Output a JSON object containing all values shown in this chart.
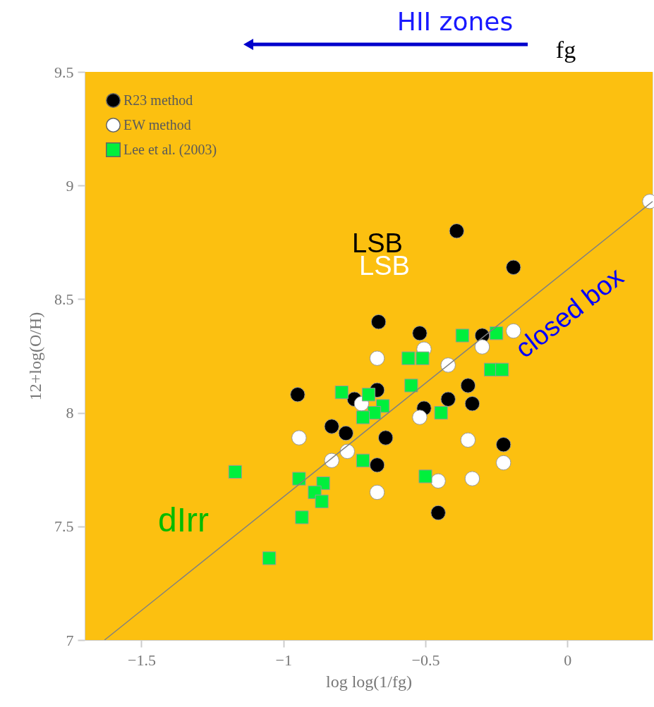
{
  "chart_data": {
    "type": "scatter",
    "xlabel": "log log(1/fg)",
    "ylabel": "12+log(O/H)",
    "xlim": [
      -1.7,
      0.3
    ],
    "ylim": [
      7,
      9.5
    ],
    "xticks": [
      -1.5,
      -1,
      -0.5,
      0
    ],
    "yticks": [
      7,
      7.5,
      8,
      8.5,
      9,
      9.5
    ],
    "grid": false,
    "legend": "top left",
    "annotations": [
      "HII zones",
      "fg",
      "LSB",
      "LSB",
      "dIrr",
      "closed box"
    ],
    "series": [
      {
        "type": "line",
        "color": "#808080",
        "x": [
          -1.63,
          0.3
        ],
        "values": [
          7.0,
          8.93
        ]
      },
      {
        "name": "R23 method",
        "color": "#000000",
        "marker": "circle",
        "x": [
          -0.95,
          -0.39,
          -0.19,
          -0.665,
          -0.52,
          -0.3,
          -0.83,
          -0.78,
          -0.75,
          -0.67,
          -0.35,
          -0.42,
          -0.335,
          -0.505,
          -0.64,
          -0.67,
          -0.225,
          -0.455
        ],
        "values": [
          8.08,
          8.8,
          8.64,
          8.4,
          8.35,
          8.34,
          7.94,
          7.91,
          8.06,
          8.1,
          8.12,
          8.06,
          8.04,
          8.02,
          7.89,
          7.77,
          7.86,
          7.56
        ]
      },
      {
        "name": "EW method",
        "color": "#ffffff",
        "marker": "circle",
        "x": [
          -0.19,
          -0.67,
          -0.505,
          -0.3,
          -0.42,
          -0.725,
          -0.52,
          -0.945,
          -0.83,
          -0.775,
          -0.35,
          -0.225,
          -0.67,
          -0.455,
          -0.335,
          0.29
        ],
        "values": [
          8.36,
          8.24,
          8.28,
          8.29,
          8.21,
          8.04,
          7.98,
          7.89,
          7.79,
          7.83,
          7.88,
          7.78,
          7.65,
          7.7,
          7.71,
          8.93
        ]
      },
      {
        "name": "Lee et al. (2003)",
        "color": "#00f03c",
        "marker": "square",
        "x": [
          -0.795,
          -0.37,
          -0.25,
          -0.56,
          -0.51,
          -0.27,
          -0.23,
          -0.55,
          -0.7,
          -0.65,
          -0.68,
          -0.72,
          -0.445,
          -0.72,
          -0.5,
          -1.17,
          -0.945,
          -0.86,
          -0.89,
          -0.865,
          -0.935,
          -1.05
        ],
        "values": [
          8.09,
          8.34,
          8.35,
          8.24,
          8.24,
          8.19,
          8.19,
          8.12,
          8.08,
          8.03,
          8.0,
          7.98,
          8.0,
          7.79,
          7.72,
          7.74,
          7.71,
          7.69,
          7.65,
          7.61,
          7.54,
          7.36
        ]
      }
    ]
  }
}
